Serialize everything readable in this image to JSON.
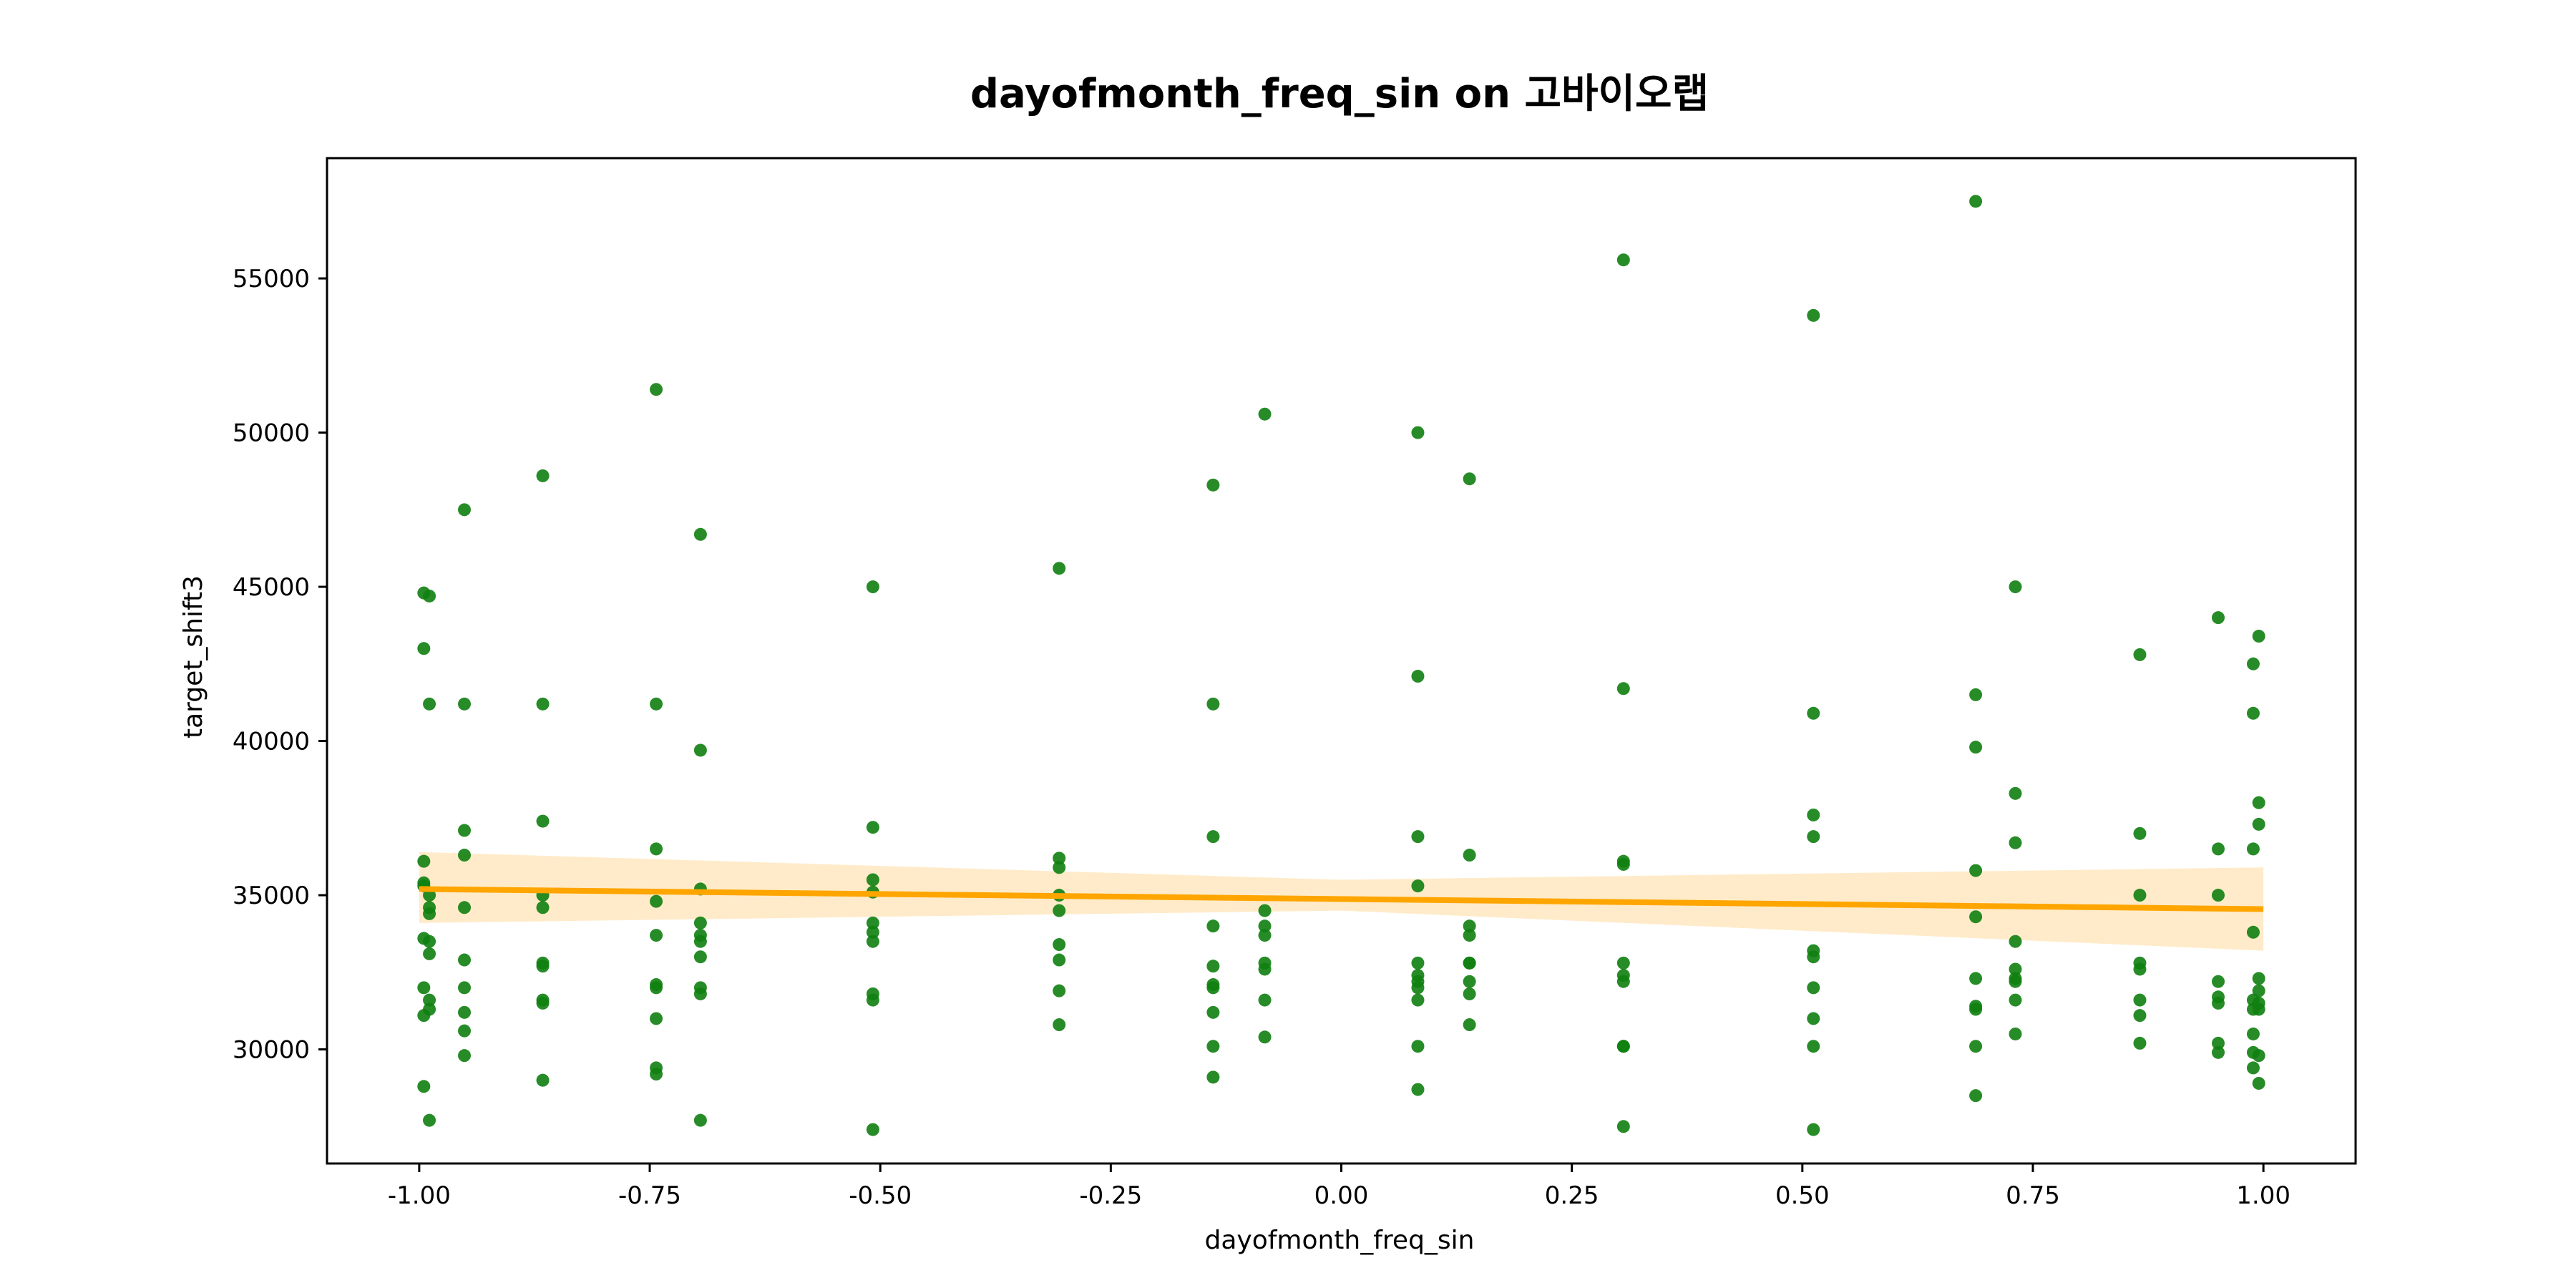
{
  "chart_data": {
    "type": "scatter",
    "title": "dayofmonth_freq_sin on 고바이오랩",
    "xlabel": "dayofmonth_freq_sin",
    "ylabel": "target_shift3",
    "xlim": [
      -1.1,
      1.1
    ],
    "ylim": [
      26300,
      58900
    ],
    "x_ticks": [
      -1.0,
      -0.75,
      -0.5,
      -0.25,
      0.0,
      0.25,
      0.5,
      0.75,
      1.0
    ],
    "x_tick_labels": [
      "-1.00",
      "-0.75",
      "-0.50",
      "-0.25",
      "0.00",
      "0.25",
      "0.50",
      "0.75",
      "1.00"
    ],
    "y_ticks": [
      30000,
      35000,
      40000,
      45000,
      50000,
      55000
    ],
    "y_tick_labels": [
      "30000",
      "35000",
      "40000",
      "45000",
      "50000",
      "55000"
    ],
    "grid": false,
    "colors": {
      "points": "#108010",
      "regression": "#FFA500",
      "ci_band": "#FFE8C0"
    },
    "series": [
      {
        "type": "scatter",
        "points": [
          [
            -0.995,
            44800
          ],
          [
            -0.995,
            43000
          ],
          [
            -0.995,
            36100
          ],
          [
            -0.995,
            35400
          ],
          [
            -0.995,
            35300
          ],
          [
            -0.995,
            33600
          ],
          [
            -0.995,
            32000
          ],
          [
            -0.995,
            31100
          ],
          [
            -0.995,
            28800
          ],
          [
            -0.989,
            44700
          ],
          [
            -0.989,
            41200
          ],
          [
            -0.989,
            35000
          ],
          [
            -0.989,
            34600
          ],
          [
            -0.989,
            34400
          ],
          [
            -0.989,
            33500
          ],
          [
            -0.989,
            33100
          ],
          [
            -0.989,
            31600
          ],
          [
            -0.989,
            31300
          ],
          [
            -0.989,
            27700
          ],
          [
            -0.951,
            47500
          ],
          [
            -0.951,
            41200
          ],
          [
            -0.951,
            37100
          ],
          [
            -0.951,
            36300
          ],
          [
            -0.951,
            34600
          ],
          [
            -0.951,
            32900
          ],
          [
            -0.951,
            32000
          ],
          [
            -0.951,
            31200
          ],
          [
            -0.951,
            30600
          ],
          [
            -0.951,
            29800
          ],
          [
            -0.866,
            48600
          ],
          [
            -0.866,
            41200
          ],
          [
            -0.866,
            37400
          ],
          [
            -0.866,
            35000
          ],
          [
            -0.866,
            34600
          ],
          [
            -0.866,
            32800
          ],
          [
            -0.866,
            32700
          ],
          [
            -0.866,
            31600
          ],
          [
            -0.866,
            31500
          ],
          [
            -0.866,
            29000
          ],
          [
            -0.743,
            51400
          ],
          [
            -0.743,
            41200
          ],
          [
            -0.743,
            36500
          ],
          [
            -0.743,
            34800
          ],
          [
            -0.743,
            33700
          ],
          [
            -0.743,
            32100
          ],
          [
            -0.743,
            32000
          ],
          [
            -0.743,
            31000
          ],
          [
            -0.743,
            29400
          ],
          [
            -0.743,
            29200
          ],
          [
            -0.695,
            46700
          ],
          [
            -0.695,
            39700
          ],
          [
            -0.695,
            35200
          ],
          [
            -0.695,
            34100
          ],
          [
            -0.695,
            33700
          ],
          [
            -0.695,
            33500
          ],
          [
            -0.695,
            33000
          ],
          [
            -0.695,
            32000
          ],
          [
            -0.695,
            31800
          ],
          [
            -0.695,
            27700
          ],
          [
            -0.508,
            45000
          ],
          [
            -0.508,
            37200
          ],
          [
            -0.508,
            35500
          ],
          [
            -0.508,
            35100
          ],
          [
            -0.508,
            34100
          ],
          [
            -0.508,
            33800
          ],
          [
            -0.508,
            33500
          ],
          [
            -0.508,
            31800
          ],
          [
            -0.508,
            31600
          ],
          [
            -0.508,
            27400
          ],
          [
            -0.306,
            45600
          ],
          [
            -0.306,
            36200
          ],
          [
            -0.306,
            35900
          ],
          [
            -0.306,
            35000
          ],
          [
            -0.306,
            34500
          ],
          [
            -0.306,
            33400
          ],
          [
            -0.306,
            32900
          ],
          [
            -0.306,
            31900
          ],
          [
            -0.306,
            30800
          ],
          [
            -0.139,
            48300
          ],
          [
            -0.139,
            41200
          ],
          [
            -0.139,
            36900
          ],
          [
            -0.139,
            34000
          ],
          [
            -0.139,
            32700
          ],
          [
            -0.139,
            32100
          ],
          [
            -0.139,
            32000
          ],
          [
            -0.139,
            31200
          ],
          [
            -0.139,
            30100
          ],
          [
            -0.139,
            29100
          ],
          [
            -0.083,
            50600
          ],
          [
            -0.083,
            34500
          ],
          [
            -0.083,
            34000
          ],
          [
            -0.083,
            33700
          ],
          [
            -0.083,
            32800
          ],
          [
            -0.083,
            32600
          ],
          [
            -0.083,
            31600
          ],
          [
            -0.083,
            30400
          ],
          [
            0.083,
            50000
          ],
          [
            0.083,
            42100
          ],
          [
            0.083,
            36900
          ],
          [
            0.083,
            35300
          ],
          [
            0.083,
            32800
          ],
          [
            0.083,
            32400
          ],
          [
            0.083,
            32200
          ],
          [
            0.083,
            32000
          ],
          [
            0.083,
            31600
          ],
          [
            0.083,
            30100
          ],
          [
            0.083,
            28700
          ],
          [
            0.139,
            48500
          ],
          [
            0.139,
            36300
          ],
          [
            0.139,
            34000
          ],
          [
            0.139,
            33700
          ],
          [
            0.139,
            32800
          ],
          [
            0.139,
            32800
          ],
          [
            0.139,
            32200
          ],
          [
            0.139,
            31800
          ],
          [
            0.139,
            30800
          ],
          [
            0.306,
            55600
          ],
          [
            0.306,
            41700
          ],
          [
            0.306,
            36100
          ],
          [
            0.306,
            36000
          ],
          [
            0.306,
            32800
          ],
          [
            0.306,
            32400
          ],
          [
            0.306,
            32200
          ],
          [
            0.306,
            30100
          ],
          [
            0.306,
            30100
          ],
          [
            0.306,
            27500
          ],
          [
            0.512,
            53800
          ],
          [
            0.512,
            40900
          ],
          [
            0.512,
            37600
          ],
          [
            0.512,
            36900
          ],
          [
            0.512,
            33200
          ],
          [
            0.512,
            33000
          ],
          [
            0.512,
            32000
          ],
          [
            0.512,
            31000
          ],
          [
            0.512,
            30100
          ],
          [
            0.512,
            27400
          ],
          [
            0.688,
            57500
          ],
          [
            0.688,
            41500
          ],
          [
            0.688,
            39800
          ],
          [
            0.688,
            35800
          ],
          [
            0.688,
            34300
          ],
          [
            0.688,
            32300
          ],
          [
            0.688,
            31400
          ],
          [
            0.688,
            31300
          ],
          [
            0.688,
            30100
          ],
          [
            0.688,
            28500
          ],
          [
            0.731,
            45000
          ],
          [
            0.731,
            38300
          ],
          [
            0.731,
            36700
          ],
          [
            0.731,
            33500
          ],
          [
            0.731,
            32600
          ],
          [
            0.731,
            32300
          ],
          [
            0.731,
            32200
          ],
          [
            0.731,
            31600
          ],
          [
            0.731,
            30500
          ],
          [
            0.866,
            42800
          ],
          [
            0.866,
            37000
          ],
          [
            0.866,
            35000
          ],
          [
            0.866,
            32800
          ],
          [
            0.866,
            32600
          ],
          [
            0.866,
            31600
          ],
          [
            0.866,
            31100
          ],
          [
            0.866,
            30200
          ],
          [
            0.951,
            44000
          ],
          [
            0.951,
            36500
          ],
          [
            0.951,
            35000
          ],
          [
            0.951,
            32200
          ],
          [
            0.951,
            31700
          ],
          [
            0.951,
            31500
          ],
          [
            0.951,
            30200
          ],
          [
            0.951,
            29900
          ],
          [
            0.989,
            42500
          ],
          [
            0.989,
            40900
          ],
          [
            0.989,
            36500
          ],
          [
            0.989,
            33800
          ],
          [
            0.989,
            31600
          ],
          [
            0.989,
            31300
          ],
          [
            0.989,
            30500
          ],
          [
            0.989,
            29900
          ],
          [
            0.989,
            29400
          ],
          [
            0.995,
            43400
          ],
          [
            0.995,
            38000
          ],
          [
            0.995,
            37300
          ],
          [
            0.995,
            32300
          ],
          [
            0.995,
            31900
          ],
          [
            0.995,
            31500
          ],
          [
            0.995,
            31300
          ],
          [
            0.995,
            29800
          ],
          [
            0.995,
            28900
          ]
        ]
      },
      {
        "type": "regression",
        "line": [
          [
            -1.0,
            35200
          ],
          [
            1.0,
            34550
          ]
        ],
        "ci_upper": [
          [
            -1.0,
            36400
          ],
          [
            0.0,
            35500
          ],
          [
            1.0,
            35900
          ]
        ],
        "ci_lower": [
          [
            -1.0,
            34100
          ],
          [
            0.0,
            34500
          ],
          [
            1.0,
            33200
          ]
        ]
      }
    ]
  }
}
